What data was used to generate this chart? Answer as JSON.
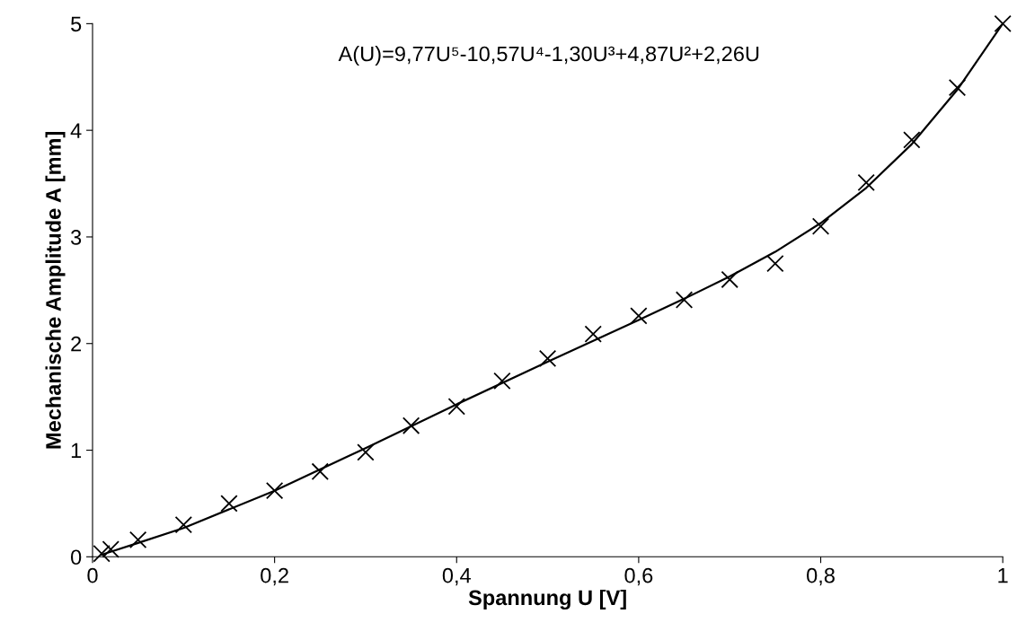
{
  "chart_data": {
    "type": "scatter",
    "xlabel": "Spannung U [V]",
    "ylabel": "Mechanische Amplitude A [mm]",
    "annotations": [
      "A(U)=9,77U⁵-10,57U⁴-1,30U³+4,87U²+2,26U"
    ],
    "xlim": [
      0,
      1
    ],
    "ylim": [
      0,
      5
    ],
    "xticks": [
      0,
      {
        "value": 0.2,
        "label": "0,2"
      },
      {
        "value": 0.4,
        "label": "0,4"
      },
      {
        "value": 0.6,
        "label": "0,6"
      },
      {
        "value": 0.8,
        "label": "0,8"
      },
      1
    ],
    "yticks": [
      0,
      1,
      2,
      3,
      4,
      5
    ],
    "grid": false,
    "legend": false,
    "series": [
      {
        "marker": "cross",
        "color": "#000000",
        "x": [
          0.01,
          0.02,
          0.05,
          0.1,
          0.15,
          0.2,
          0.25,
          0.3,
          0.35,
          0.4,
          0.45,
          0.5,
          0.55,
          0.6,
          0.65,
          0.7,
          0.75,
          0.8,
          0.85,
          0.9,
          0.95,
          1.0
        ],
        "values": [
          0.03,
          0.07,
          0.16,
          0.3,
          0.5,
          0.62,
          0.8,
          0.98,
          1.23,
          1.41,
          1.65,
          1.86,
          2.09,
          2.26,
          2.41,
          2.6,
          2.75,
          3.1,
          3.51,
          3.91,
          4.4,
          5.0
        ]
      },
      {
        "type": "line",
        "marker": "none",
        "line_style": "solid",
        "color": "#000000",
        "x": [
          0.01,
          0.05,
          0.1,
          0.2,
          0.3,
          0.4,
          0.5,
          0.6,
          0.65,
          0.7,
          0.75,
          0.8,
          0.85,
          0.9,
          0.95,
          1.0
        ],
        "values": [
          0.02,
          0.13,
          0.27,
          0.62,
          1.02,
          1.43,
          1.83,
          2.22,
          2.42,
          2.63,
          2.86,
          3.13,
          3.46,
          3.87,
          4.38,
          5.0
        ]
      }
    ]
  }
}
